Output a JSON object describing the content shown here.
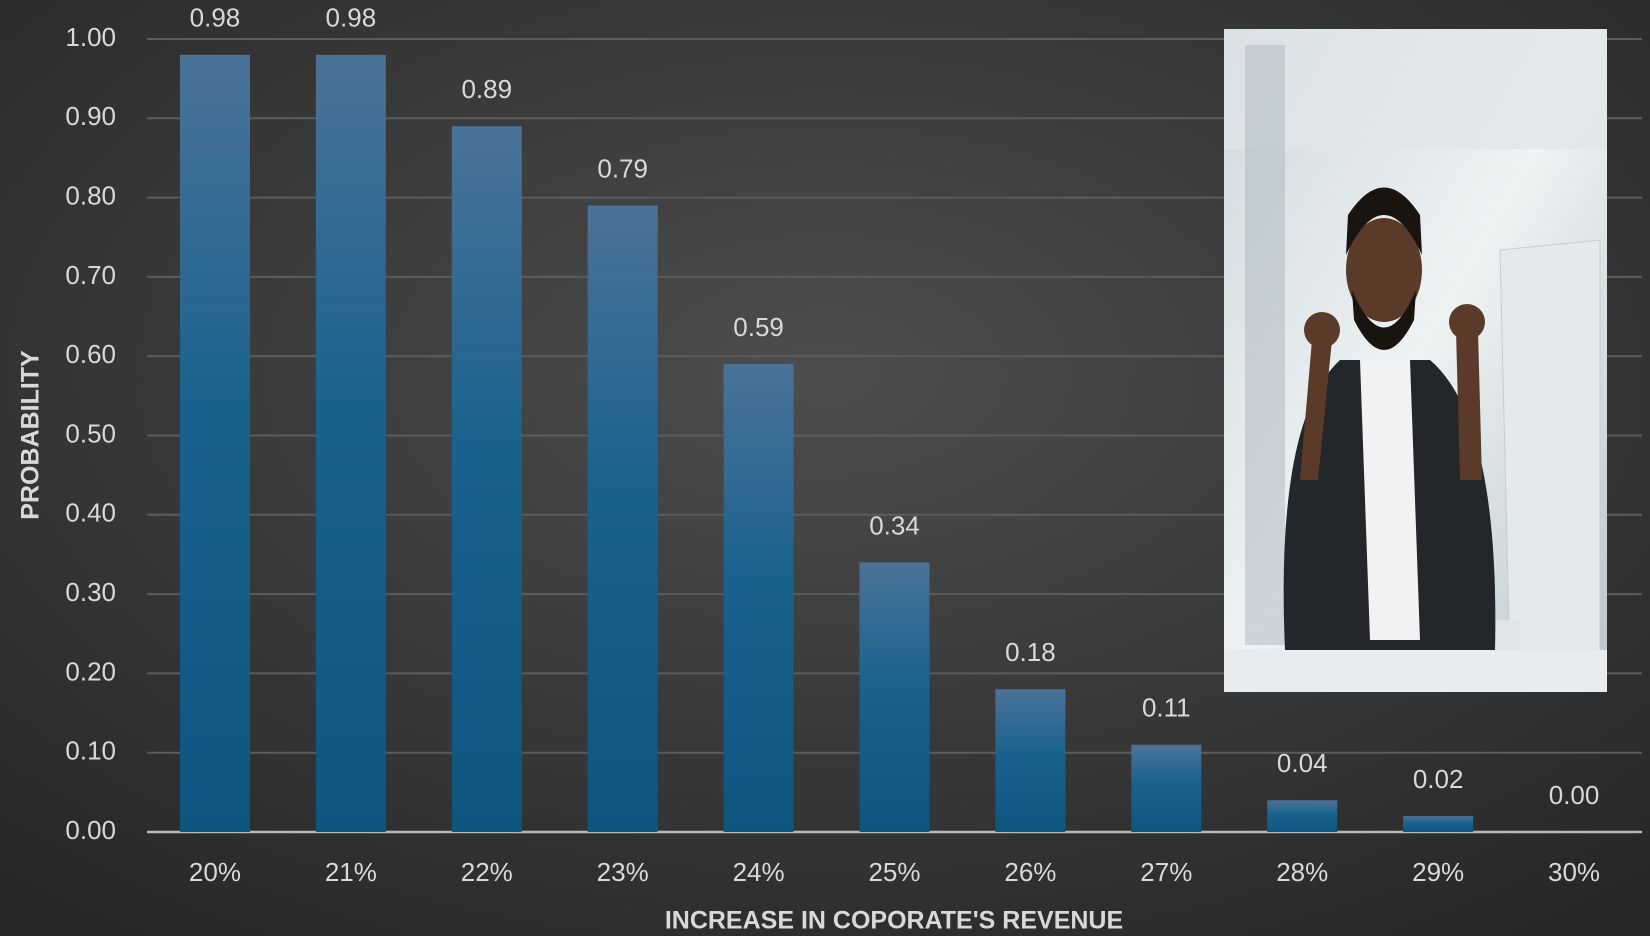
{
  "chart_data": {
    "type": "bar",
    "categories": [
      "20%",
      "21%",
      "22%",
      "23%",
      "24%",
      "25%",
      "26%",
      "27%",
      "28%",
      "29%",
      "30%"
    ],
    "values": [
      0.98,
      0.98,
      0.89,
      0.79,
      0.59,
      0.34,
      0.18,
      0.11,
      0.04,
      0.02,
      0
    ],
    "value_labels": [
      "0.98",
      "0.98",
      "0.89",
      "0.79",
      "0.59",
      "0.34",
      "0.18",
      "0.11",
      "0.04",
      "0.02",
      "0.00"
    ],
    "color": "#1b5f88",
    "ylim": [
      0,
      1
    ],
    "yticks": [
      {
        "value": 0,
        "label": "0.00"
      },
      {
        "value": 0.1,
        "label": "0.10"
      },
      {
        "value": 0.2,
        "label": "0.20"
      },
      {
        "value": 0.3,
        "label": "0.30"
      },
      {
        "value": 0.4,
        "label": "0.40"
      },
      {
        "value": 0.5,
        "label": "0.50"
      },
      {
        "value": 0.6,
        "label": "0.60"
      },
      {
        "value": 0.7,
        "label": "0.70"
      },
      {
        "value": 0.8,
        "label": "0.80"
      },
      {
        "value": 0.9,
        "label": "0.90"
      },
      {
        "value": 1,
        "label": "1.00"
      }
    ],
    "y_label": "PROBABILITY",
    "x_label": "INCREASE IN COPORATE'S REVENUE",
    "grid": true
  }
}
